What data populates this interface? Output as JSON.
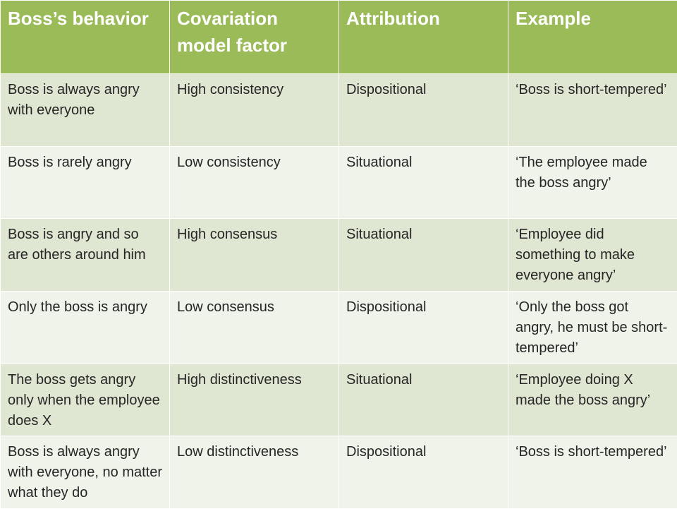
{
  "colors": {
    "header_bg": "#9bbb59",
    "header_text": "#ffffff",
    "row_odd_bg": "#dfe6d2",
    "row_even_bg": "#eff3ea",
    "body_text": "#262626"
  },
  "table": {
    "headers": [
      "Boss’s behavior",
      "Covariation model factor",
      "Attribution",
      "Example"
    ],
    "rows": [
      [
        "Boss is always angry with everyone",
        "High consistency",
        "Dispositional",
        "‘Boss is short-tempered’"
      ],
      [
        "Boss is rarely angry",
        "Low consistency",
        "Situational",
        "‘The employee made the boss angry’"
      ],
      [
        "Boss is angry and so are others around him",
        "High consensus",
        "Situational",
        "‘Employee did something to make everyone angry’"
      ],
      [
        "Only the boss is angry",
        "Low consensus",
        "Dispositional",
        "‘Only the boss got angry, he must be short-tempered’"
      ],
      [
        "The boss gets angry only when the employee does X",
        "High distinctiveness",
        "Situational",
        "‘Employee doing X made the boss angry’"
      ],
      [
        "Boss is always angry with everyone, no matter what they do",
        "Low distinctiveness",
        "Dispositional",
        "‘Boss is short-tempered’"
      ]
    ]
  }
}
